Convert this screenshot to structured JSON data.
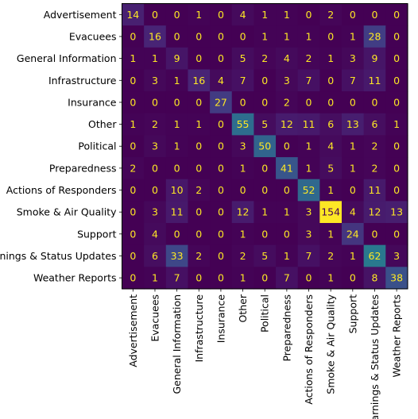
{
  "chart_data": {
    "type": "heatmap",
    "title": "",
    "xlabel": "",
    "ylabel": "",
    "row_labels": [
      "Advertisement",
      "Evacuees",
      "General Information",
      "Infrastructure",
      "Insurance",
      "Other",
      "Political",
      "Preparedness",
      "Actions of Responders",
      "Smoke & Air Quality",
      "Support",
      "Warnings & Status Updates",
      "Weather Reports"
    ],
    "col_labels": [
      "Advertisement",
      "Evacuees",
      "General Information",
      "Infrastructure",
      "Insurance",
      "Other",
      "Political",
      "Preparedness",
      "Actions of Responders",
      "Smoke & Air Quality",
      "Support",
      "Warnings & Status Updates",
      "Weather Reports"
    ],
    "values": [
      [
        14,
        0,
        0,
        1,
        0,
        4,
        1,
        1,
        0,
        2,
        0,
        0,
        0
      ],
      [
        0,
        16,
        0,
        0,
        0,
        0,
        1,
        1,
        1,
        0,
        1,
        28,
        0
      ],
      [
        1,
        1,
        9,
        0,
        0,
        5,
        2,
        4,
        2,
        1,
        3,
        9,
        0
      ],
      [
        0,
        3,
        1,
        16,
        4,
        7,
        0,
        3,
        7,
        0,
        7,
        11,
        0
      ],
      [
        0,
        0,
        0,
        0,
        27,
        0,
        0,
        2,
        0,
        0,
        0,
        0,
        0
      ],
      [
        1,
        2,
        1,
        1,
        0,
        55,
        5,
        12,
        11,
        6,
        13,
        6,
        1
      ],
      [
        0,
        3,
        1,
        0,
        0,
        3,
        50,
        0,
        1,
        4,
        1,
        2,
        0
      ],
      [
        2,
        0,
        0,
        0,
        0,
        1,
        0,
        41,
        1,
        5,
        1,
        2,
        0
      ],
      [
        0,
        0,
        10,
        2,
        0,
        0,
        0,
        0,
        52,
        1,
        0,
        11,
        0
      ],
      [
        0,
        3,
        11,
        0,
        0,
        12,
        1,
        1,
        3,
        154,
        4,
        12,
        13
      ],
      [
        0,
        4,
        0,
        0,
        0,
        1,
        0,
        0,
        3,
        1,
        24,
        0,
        0
      ],
      [
        0,
        6,
        33,
        2,
        0,
        2,
        5,
        1,
        7,
        2,
        1,
        62,
        3
      ],
      [
        0,
        1,
        7,
        0,
        0,
        1,
        0,
        7,
        0,
        1,
        0,
        8,
        38
      ]
    ],
    "colormap": "viridis",
    "vmin": 0,
    "vmax": 154,
    "text_light": "#fde725",
    "text_dark": "#440154"
  }
}
